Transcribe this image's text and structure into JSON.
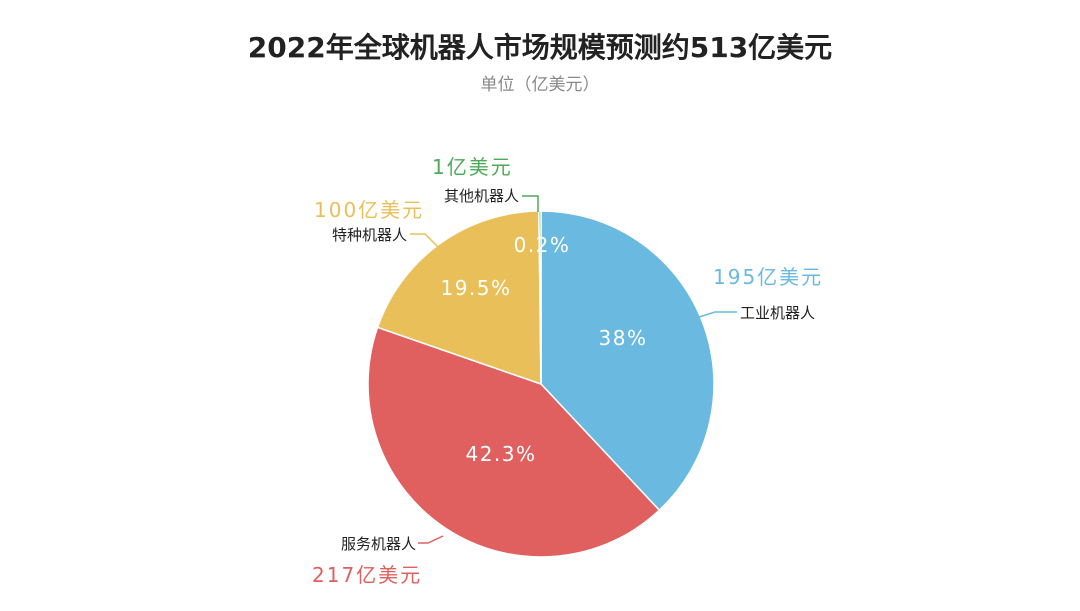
{
  "colors": {
    "title": "#222222",
    "subtitle": "#888888",
    "industrial": "#6AB9E1",
    "service": "#E06060",
    "special": "#E9BF5A",
    "other": "#4DAA58"
  },
  "chart_data": {
    "type": "pie",
    "title": "2022年全球机器人市场规模预测约513亿美元",
    "subtitle": "单位（亿美元）",
    "slices": [
      {
        "name": "工业机器人",
        "value": 195,
        "value_label": "195亿美元",
        "percent_label": "38%",
        "color": "#6AB9E1"
      },
      {
        "name": "服务机器人",
        "value": 217,
        "value_label": "217亿美元",
        "percent_label": "42.3%",
        "color": "#E06060"
      },
      {
        "name": "特种机器人",
        "value": 100,
        "value_label": "100亿美元",
        "percent_label": "19.5%",
        "color": "#E9BF5A"
      },
      {
        "name": "其他机器人",
        "value": 1,
        "value_label": "1亿美元",
        "percent_label": "0.2%",
        "color": "#4DAA58"
      }
    ]
  }
}
